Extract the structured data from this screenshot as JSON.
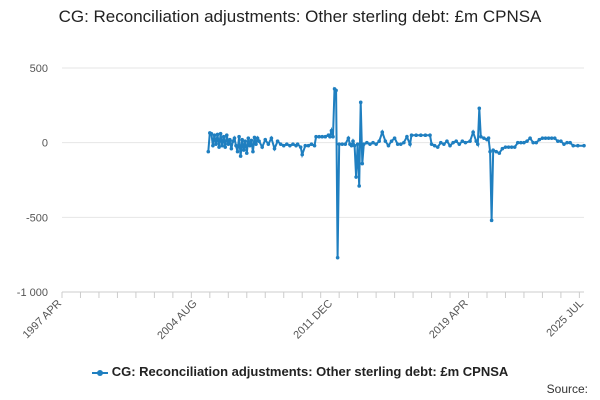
{
  "chart_data": {
    "type": "line",
    "title": "CG: Reconciliation adjustments: Other sterling debt: £m CPNSA",
    "series_name": "CG: Reconciliation adjustments: Other sterling debt: £m CPNSA",
    "color": "#1f7fc0",
    "source_label": "Source:",
    "ylim": [
      -1000,
      500
    ],
    "y_ticks": [
      500,
      0,
      -500,
      -1000
    ],
    "y_tick_labels": [
      "500",
      "0",
      "-500",
      "-1 000"
    ],
    "x_range": [
      "1997-04",
      "2025-07"
    ],
    "x_tick_labels": [
      {
        "date": "1997-04",
        "label": "1997 APR"
      },
      {
        "date": "2004-08",
        "label": "2004 AUG"
      },
      {
        "date": "2011-12",
        "label": "2011 DEC"
      },
      {
        "date": "2019-04",
        "label": "2019 APR"
      },
      {
        "date": "2025-07",
        "label": "2025 JUL"
      }
    ],
    "points": [
      [
        "2005-03",
        -60
      ],
      [
        "2005-04",
        65
      ],
      [
        "2005-05",
        60
      ],
      [
        "2005-06",
        -20
      ],
      [
        "2005-07",
        50
      ],
      [
        "2005-08",
        -10
      ],
      [
        "2005-09",
        55
      ],
      [
        "2005-10",
        -30
      ],
      [
        "2005-11",
        60
      ],
      [
        "2005-12",
        -20
      ],
      [
        "2006-01",
        40
      ],
      [
        "2006-02",
        -30
      ],
      [
        "2006-03",
        50
      ],
      [
        "2006-04",
        -10
      ],
      [
        "2006-05",
        20
      ],
      [
        "2006-06",
        -40
      ],
      [
        "2006-07",
        10
      ],
      [
        "2006-08",
        30
      ],
      [
        "2006-09",
        -20
      ],
      [
        "2006-10",
        -60
      ],
      [
        "2006-11",
        40
      ],
      [
        "2006-12",
        -90
      ],
      [
        "2007-01",
        20
      ],
      [
        "2007-02",
        -50
      ],
      [
        "2007-03",
        10
      ],
      [
        "2007-04",
        -70
      ],
      [
        "2007-05",
        30
      ],
      [
        "2007-06",
        -20
      ],
      [
        "2007-07",
        15
      ],
      [
        "2007-08",
        -60
      ],
      [
        "2007-09",
        35
      ],
      [
        "2007-10",
        -10
      ],
      [
        "2007-11",
        30
      ],
      [
        "2007-12",
        10
      ],
      [
        "2008-02",
        -30
      ],
      [
        "2008-04",
        20
      ],
      [
        "2008-06",
        -10
      ],
      [
        "2008-08",
        30
      ],
      [
        "2008-10",
        -40
      ],
      [
        "2008-12",
        10
      ],
      [
        "2009-02",
        -10
      ],
      [
        "2009-04",
        -20
      ],
      [
        "2009-06",
        -10
      ],
      [
        "2009-08",
        -20
      ],
      [
        "2009-10",
        -10
      ],
      [
        "2009-12",
        -20
      ],
      [
        "2010-01",
        -10
      ],
      [
        "2010-03",
        -30
      ],
      [
        "2010-04",
        -80
      ],
      [
        "2010-06",
        -20
      ],
      [
        "2010-08",
        -20
      ],
      [
        "2010-10",
        -10
      ],
      [
        "2010-12",
        -20
      ],
      [
        "2011-01",
        40
      ],
      [
        "2011-03",
        40
      ],
      [
        "2011-05",
        40
      ],
      [
        "2011-07",
        40
      ],
      [
        "2011-09",
        50
      ],
      [
        "2011-10",
        40
      ],
      [
        "2011-11",
        80
      ],
      [
        "2011-12",
        40
      ],
      [
        "2012-01",
        360
      ],
      [
        "2012-02",
        350
      ],
      [
        "2012-03",
        -770
      ],
      [
        "2012-04",
        -10
      ],
      [
        "2012-06",
        -10
      ],
      [
        "2012-08",
        -10
      ],
      [
        "2012-10",
        30
      ],
      [
        "2012-11",
        -10
      ],
      [
        "2012-12",
        -20
      ],
      [
        "2013-01",
        10
      ],
      [
        "2013-02",
        -20
      ],
      [
        "2013-03",
        -230
      ],
      [
        "2013-04",
        -10
      ],
      [
        "2013-05",
        -290
      ],
      [
        "2013-06",
        270
      ],
      [
        "2013-07",
        -140
      ],
      [
        "2013-08",
        -10
      ],
      [
        "2013-10",
        0
      ],
      [
        "2013-12",
        -10
      ],
      [
        "2014-02",
        0
      ],
      [
        "2014-04",
        -10
      ],
      [
        "2014-06",
        10
      ],
      [
        "2014-08",
        70
      ],
      [
        "2014-10",
        10
      ],
      [
        "2014-12",
        -20
      ],
      [
        "2015-02",
        10
      ],
      [
        "2015-04",
        30
      ],
      [
        "2015-06",
        -10
      ],
      [
        "2015-08",
        -10
      ],
      [
        "2015-10",
        0
      ],
      [
        "2015-12",
        40
      ],
      [
        "2016-02",
        -10
      ],
      [
        "2016-03",
        50
      ],
      [
        "2016-06",
        50
      ],
      [
        "2016-09",
        50
      ],
      [
        "2016-12",
        50
      ],
      [
        "2017-03",
        50
      ],
      [
        "2017-04",
        -10
      ],
      [
        "2017-06",
        -20
      ],
      [
        "2017-08",
        -30
      ],
      [
        "2017-10",
        0
      ],
      [
        "2017-12",
        -10
      ],
      [
        "2018-02",
        10
      ],
      [
        "2018-04",
        -20
      ],
      [
        "2018-06",
        0
      ],
      [
        "2018-08",
        10
      ],
      [
        "2018-10",
        -10
      ],
      [
        "2018-12",
        10
      ],
      [
        "2019-02",
        0
      ],
      [
        "2019-05",
        10
      ],
      [
        "2019-07",
        70
      ],
      [
        "2019-09",
        10
      ],
      [
        "2019-10",
        -10
      ],
      [
        "2019-11",
        230
      ],
      [
        "2019-12",
        40
      ],
      [
        "2020-02",
        30
      ],
      [
        "2020-04",
        20
      ],
      [
        "2020-05",
        30
      ],
      [
        "2020-06",
        -60
      ],
      [
        "2020-07",
        -520
      ],
      [
        "2020-08",
        -50
      ],
      [
        "2020-10",
        -60
      ],
      [
        "2020-12",
        -70
      ],
      [
        "2021-02",
        -40
      ],
      [
        "2021-04",
        -30
      ],
      [
        "2021-06",
        -30
      ],
      [
        "2021-08",
        -30
      ],
      [
        "2021-10",
        -30
      ],
      [
        "2021-12",
        0
      ],
      [
        "2022-02",
        0
      ],
      [
        "2022-04",
        0
      ],
      [
        "2022-06",
        10
      ],
      [
        "2022-08",
        30
      ],
      [
        "2022-10",
        0
      ],
      [
        "2022-12",
        0
      ],
      [
        "2023-02",
        20
      ],
      [
        "2023-04",
        30
      ],
      [
        "2023-06",
        30
      ],
      [
        "2023-08",
        30
      ],
      [
        "2023-10",
        30
      ],
      [
        "2023-12",
        30
      ],
      [
        "2024-02",
        10
      ],
      [
        "2024-04",
        10
      ],
      [
        "2024-06",
        -10
      ],
      [
        "2024-08",
        0
      ],
      [
        "2024-10",
        0
      ],
      [
        "2024-12",
        -20
      ],
      [
        "2025-03",
        -20
      ],
      [
        "2025-07",
        -20
      ]
    ]
  }
}
